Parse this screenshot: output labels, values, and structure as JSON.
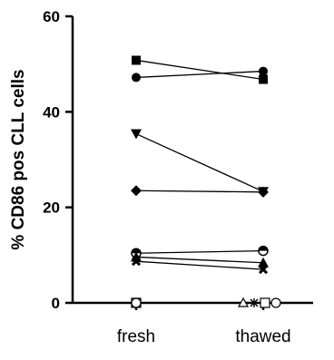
{
  "chart_data": {
    "type": "line",
    "title": "",
    "xlabel": "",
    "ylabel": "% CD86 pos CLL cells",
    "categories": [
      "fresh",
      "thawed"
    ],
    "ylim": [
      0,
      60
    ],
    "yticks": [
      "0",
      "20",
      "40",
      "60"
    ],
    "grid": false,
    "legend": "none",
    "series": [
      {
        "marker": "square",
        "values": [
          50.8,
          46.8
        ]
      },
      {
        "marker": "circle",
        "values": [
          47.2,
          48.5
        ]
      },
      {
        "marker": "triangle-down",
        "values": [
          35.4,
          23.3
        ]
      },
      {
        "marker": "diamond",
        "values": [
          23.5,
          23.2
        ]
      },
      {
        "marker": "half-circle",
        "values": [
          10.4,
          10.9
        ]
      },
      {
        "marker": "triangle-up",
        "values": [
          9.6,
          8.4
        ]
      },
      {
        "marker": "x",
        "values": [
          8.7,
          7.0
        ]
      },
      {
        "marker": "open-triangle",
        "values": [
          0,
          0
        ]
      },
      {
        "marker": "asterisk",
        "values": [
          0,
          0
        ]
      },
      {
        "marker": "open-square",
        "values": [
          0,
          0
        ]
      },
      {
        "marker": "open-circle",
        "values": [
          0,
          0
        ]
      }
    ]
  }
}
